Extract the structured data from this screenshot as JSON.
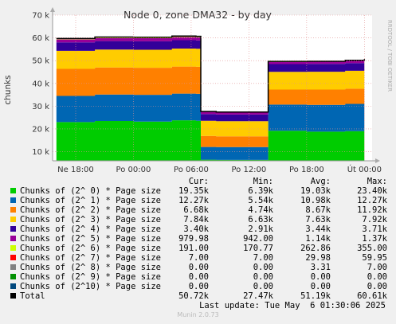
{
  "chart_data": {
    "type": "area",
    "stacked": true,
    "title": "Node 0, zone DMA32 - by day",
    "ylabel": "chunks",
    "side_label": "RRDTOOL / TOBI OETIKER",
    "x_tick_labels": [
      "Ne 18:00",
      "Po 00:00",
      "Po 06:00",
      "Po 12:00",
      "Po 18:00",
      "Út 00:00"
    ],
    "y_tick_labels": [
      "10 k",
      "20 k",
      "30 k",
      "40 k",
      "50 k",
      "60 k",
      "70 k"
    ],
    "ylim": [
      0,
      70000
    ],
    "grid": true,
    "x_hours": [
      16,
      20,
      24,
      28,
      30.5,
      31,
      32.6,
      34.8,
      38,
      42,
      46,
      48
    ],
    "series": [
      {
        "name": "Chunks of (2^ 0) * Page size",
        "color": "#00cc00",
        "values": [
          23000,
          23500,
          23200,
          23800,
          23600,
          6500,
          6400,
          6400,
          19200,
          18800,
          19000,
          19300
        ]
      },
      {
        "name": "Chunks of (2^ 1) * Page size",
        "color": "#0066b3",
        "values": [
          11500,
          11600,
          11800,
          11700,
          11800,
          5600,
          5600,
          5600,
          11500,
          11800,
          12000,
          12270
        ]
      },
      {
        "name": "Chunks of (2^ 2) * Page size",
        "color": "#ff8000",
        "values": [
          11900,
          11900,
          11900,
          11900,
          11900,
          4800,
          4750,
          4750,
          6600,
          6700,
          6700,
          6680
        ]
      },
      {
        "name": "Chunks of (2^ 3) * Page size",
        "color": "#ffcc00",
        "values": [
          7900,
          7900,
          7900,
          7900,
          7900,
          6700,
          6650,
          6650,
          7800,
          7850,
          7850,
          7840
        ]
      },
      {
        "name": "Chunks of (2^ 4) * Page size",
        "color": "#330099",
        "values": [
          3700,
          3700,
          3700,
          3700,
          3700,
          2950,
          2920,
          2920,
          3400,
          3400,
          3400,
          3400
        ]
      },
      {
        "name": "Chunks of (2^ 5) * Page size",
        "color": "#990099",
        "values": [
          1370,
          1370,
          1370,
          1370,
          1370,
          945,
          942,
          942,
          980,
          980,
          980,
          980
        ]
      },
      {
        "name": "Chunks of (2^ 6) * Page size",
        "color": "#ccff00",
        "values": [
          355,
          355,
          355,
          355,
          355,
          172,
          171,
          171,
          191,
          191,
          191,
          191
        ]
      },
      {
        "name": "Chunks of (2^ 7) * Page size",
        "color": "#ff0000",
        "values": [
          59,
          59,
          59,
          59,
          59,
          7,
          7,
          7,
          7,
          7,
          7,
          7
        ]
      },
      {
        "name": "Chunks of (2^ 8) * Page size",
        "color": "#808080",
        "values": [
          7,
          7,
          7,
          7,
          7,
          0,
          0,
          0,
          0,
          0,
          0,
          0
        ]
      },
      {
        "name": "Chunks of (2^ 9) * Page size",
        "color": "#008f00",
        "values": [
          0,
          0,
          0,
          0,
          0,
          0,
          0,
          0,
          0,
          0,
          0,
          0
        ]
      },
      {
        "name": "Chunks of (2^10) * Page size",
        "color": "#00487d",
        "values": [
          0,
          0,
          0,
          0,
          0,
          0,
          0,
          0,
          0,
          0,
          0,
          0
        ]
      }
    ],
    "total_color": "#000000"
  },
  "legend": {
    "headers": {
      "cur": "Cur:",
      "min": "Min:",
      "avg": "Avg:",
      "max": "Max:"
    },
    "rows": [
      {
        "label": "Chunks of (2^ 0) * Page size",
        "color": "#00cc00",
        "cur": "19.35k",
        "min": "6.39k",
        "avg": "19.03k",
        "max": "23.40k"
      },
      {
        "label": "Chunks of (2^ 1) * Page size",
        "color": "#0066b3",
        "cur": "12.27k",
        "min": "5.54k",
        "avg": "10.98k",
        "max": "12.27k"
      },
      {
        "label": "Chunks of (2^ 2) * Page size",
        "color": "#ff8000",
        "cur": "6.68k",
        "min": "4.74k",
        "avg": "8.67k",
        "max": "11.92k"
      },
      {
        "label": "Chunks of (2^ 3) * Page size",
        "color": "#ffcc00",
        "cur": "7.84k",
        "min": "6.63k",
        "avg": "7.63k",
        "max": "7.92k"
      },
      {
        "label": "Chunks of (2^ 4) * Page size",
        "color": "#330099",
        "cur": "3.40k",
        "min": "2.91k",
        "avg": "3.44k",
        "max": "3.71k"
      },
      {
        "label": "Chunks of (2^ 5) * Page size",
        "color": "#990099",
        "cur": "979.98",
        "min": "942.00",
        "avg": "1.14k",
        "max": "1.37k"
      },
      {
        "label": "Chunks of (2^ 6) * Page size",
        "color": "#ccff00",
        "cur": "191.00",
        "min": "170.77",
        "avg": "262.86",
        "max": "355.00"
      },
      {
        "label": "Chunks of (2^ 7) * Page size",
        "color": "#ff0000",
        "cur": "7.00",
        "min": "7.00",
        "avg": "29.98",
        "max": "59.95"
      },
      {
        "label": "Chunks of (2^ 8) * Page size",
        "color": "#808080",
        "cur": "0.00",
        "min": "0.00",
        "avg": "3.31",
        "max": "7.00"
      },
      {
        "label": "Chunks of (2^ 9) * Page size",
        "color": "#008f00",
        "cur": "0.00",
        "min": "0.00",
        "avg": "0.00",
        "max": "0.00"
      },
      {
        "label": "Chunks of (2^10) * Page size",
        "color": "#00487d",
        "cur": "0.00",
        "min": "0.00",
        "avg": "0.00",
        "max": "0.00"
      },
      {
        "label": "Total",
        "color": "#000000",
        "cur": "50.72k",
        "min": "27.47k",
        "avg": "51.19k",
        "max": "60.61k"
      }
    ],
    "last_update": "Last update: Tue May  6 01:30:06 2025",
    "footer": "Munin 2.0.73"
  }
}
